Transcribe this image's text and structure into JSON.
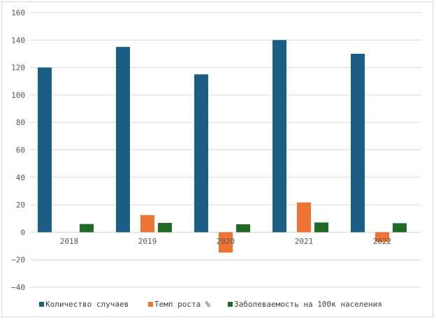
{
  "chart_data": {
    "type": "bar",
    "categories": [
      "2018",
      "2019",
      "2020",
      "2021",
      "2022"
    ],
    "series": [
      {
        "name": "Количество случаев",
        "values": [
          120,
          135,
          115,
          140,
          130
        ],
        "color": "#1a5e86"
      },
      {
        "name": "Темп роста %",
        "values": [
          null,
          12.5,
          -14.8,
          21.7,
          -7.1
        ],
        "color": "#ed7432"
      },
      {
        "name": "Заболеваемость на 100к населения",
        "values": [
          6.0,
          6.8,
          5.8,
          7.1,
          6.6
        ],
        "color": "#1f6b26"
      }
    ],
    "ylim": [
      -40,
      160
    ],
    "yticks": [
      "−40",
      "−20",
      "0",
      "20",
      "40",
      "60",
      "80",
      "100",
      "120",
      "140",
      "160"
    ],
    "ytick_values": [
      -40,
      -20,
      0,
      20,
      40,
      60,
      80,
      100,
      120,
      140,
      160
    ],
    "grid": true,
    "legend": "bottom",
    "title": "",
    "xlabel": "",
    "ylabel": ""
  }
}
